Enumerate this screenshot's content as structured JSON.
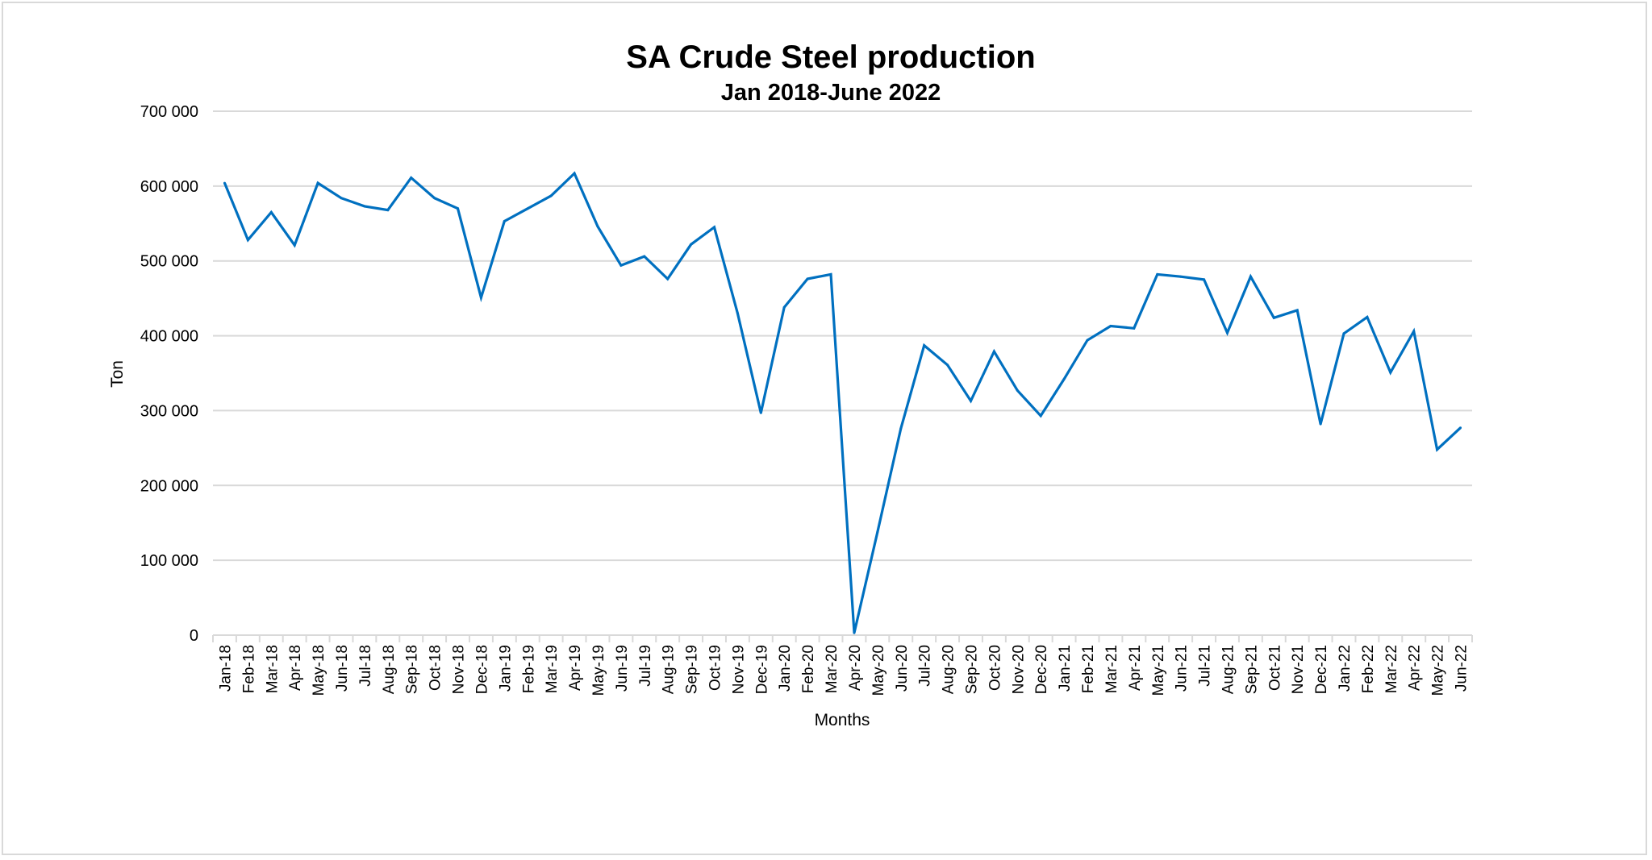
{
  "chart_data": {
    "type": "line",
    "title": "SA Crude Steel production",
    "subtitle": "Jan 2018-June 2022",
    "xlabel": "Months",
    "ylabel": "Ton",
    "ylim": [
      0,
      700000
    ],
    "yticks": [
      0,
      100000,
      200000,
      300000,
      400000,
      500000,
      600000,
      700000
    ],
    "ytick_labels": [
      "0",
      "100 000",
      "200 000",
      "300 000",
      "400 000",
      "500 000",
      "600 000",
      "700 000"
    ],
    "grid": true,
    "legend": "none",
    "line_color": "#0070C0",
    "categories": [
      "Jan-18",
      "Feb-18",
      "Mar-18",
      "Apr-18",
      "May-18",
      "Jun-18",
      "Jul-18",
      "Aug-18",
      "Sep-18",
      "Oct-18",
      "Nov-18",
      "Dec-18",
      "Jan-19",
      "Feb-19",
      "Mar-19",
      "Apr-19",
      "May-19",
      "Jun-19",
      "Jul-19",
      "Aug-19",
      "Sep-19",
      "Oct-19",
      "Nov-19",
      "Dec-19",
      "Jan-20",
      "Feb-20",
      "Mar-20",
      "Apr-20",
      "May-20",
      "Jun-20",
      "Jul-20",
      "Aug-20",
      "Sep-20",
      "Oct-20",
      "Nov-20",
      "Dec-20",
      "Jan-21",
      "Feb-21",
      "Mar-21",
      "Apr-21",
      "May-21",
      "Jun-21",
      "Jul-21",
      "Aug-21",
      "Sep-21",
      "Oct-21",
      "Nov-21",
      "Dec-21",
      "Jan-22",
      "Feb-22",
      "Mar-22",
      "Apr-22",
      "May-22",
      "Jun-22"
    ],
    "values": [
      604000,
      528000,
      565000,
      521000,
      604000,
      584000,
      573000,
      568000,
      611000,
      584000,
      570000,
      451000,
      553000,
      570000,
      587000,
      617000,
      546000,
      494000,
      506000,
      476000,
      522000,
      545000,
      430000,
      297000,
      438000,
      476000,
      482000,
      3000,
      138000,
      276000,
      387000,
      361000,
      313000,
      379000,
      327000,
      293000,
      342000,
      394000,
      413000,
      410000,
      482000,
      479000,
      475000,
      404000,
      479000,
      424000,
      434000,
      282000,
      403000,
      425000,
      351000,
      406000,
      248000,
      277000
    ]
  }
}
